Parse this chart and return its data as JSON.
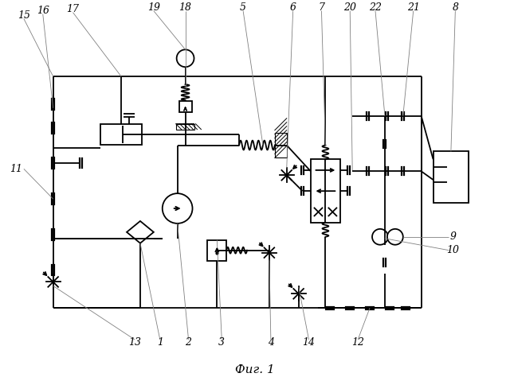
{
  "title": "Фиг. 1",
  "bg_color": "#ffffff",
  "line_color": "#000000",
  "lw": 1.3,
  "fig_width": 6.4,
  "fig_height": 4.79,
  "dpi": 100
}
